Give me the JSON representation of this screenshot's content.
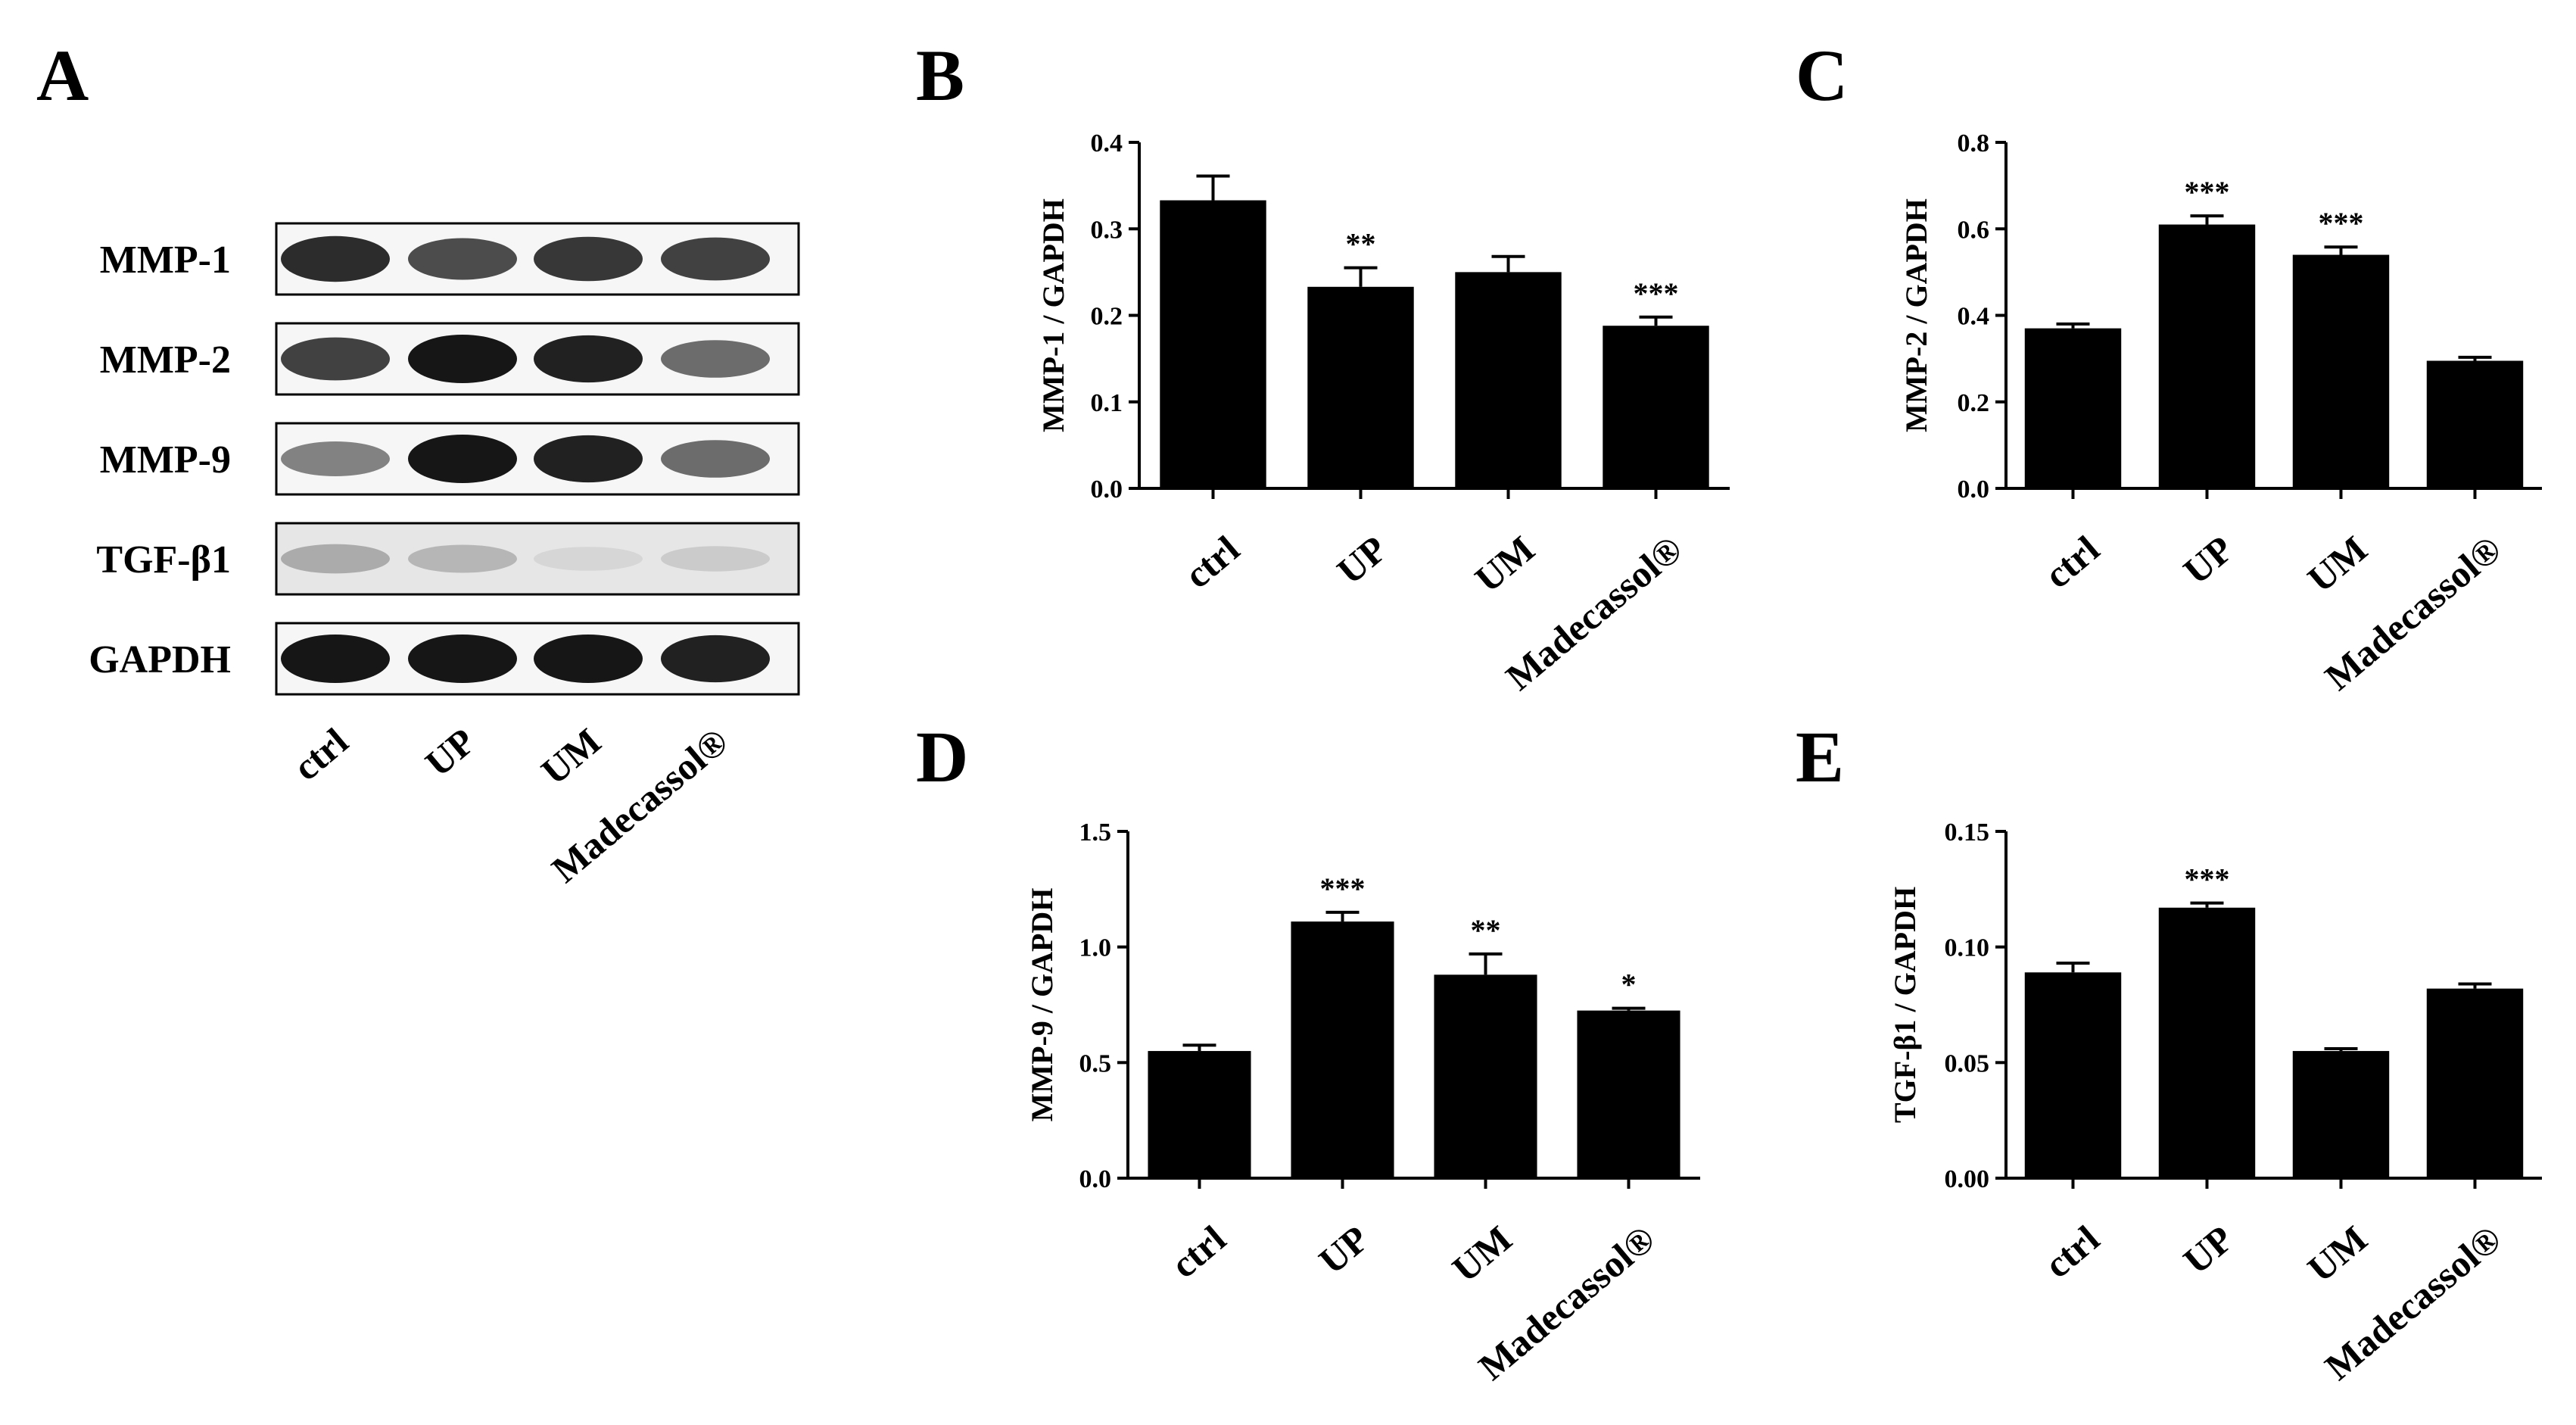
{
  "panel_letters": [
    "A",
    "B",
    "C",
    "D",
    "E"
  ],
  "blot": {
    "rows": [
      "MMP-1",
      "MMP-2",
      "MMP-9",
      "TGF-β1",
      "GAPDH"
    ],
    "lanes": [
      "ctrl",
      "UP",
      "UM",
      "Madecassol®"
    ],
    "band_intensity": [
      [
        0.9,
        0.75,
        0.85,
        0.8
      ],
      [
        0.8,
        1.0,
        0.95,
        0.6
      ],
      [
        0.5,
        1.0,
        0.95,
        0.6
      ],
      [
        0.3,
        0.25,
        0.1,
        0.15
      ],
      [
        1.0,
        1.0,
        1.0,
        0.95
      ]
    ]
  },
  "chart_data": [
    {
      "panel": "B",
      "type": "bar",
      "categories": [
        "ctrl",
        "UP",
        "UM",
        "Madecassol®"
      ],
      "values": [
        0.333,
        0.233,
        0.25,
        0.188
      ],
      "errors": [
        0.028,
        0.022,
        0.018,
        0.01
      ],
      "significance": [
        "",
        "**",
        "",
        "***"
      ],
      "ylabel": "MMP-1 / GAPDH",
      "ylim": [
        0,
        0.4
      ],
      "yticks": [
        "0.0",
        "0.1",
        "0.2",
        "0.3",
        "0.4"
      ]
    },
    {
      "panel": "C",
      "type": "bar",
      "categories": [
        "ctrl",
        "UP",
        "UM",
        "Madecassol®"
      ],
      "values": [
        0.37,
        0.61,
        0.54,
        0.295
      ],
      "errors": [
        0.01,
        0.02,
        0.018,
        0.008
      ],
      "significance": [
        "",
        "***",
        "***",
        ""
      ],
      "ylabel": "MMP-2 / GAPDH",
      "ylim": [
        0,
        0.8
      ],
      "yticks": [
        "0.0",
        "0.2",
        "0.4",
        "0.6",
        "0.8"
      ]
    },
    {
      "panel": "D",
      "type": "bar",
      "categories": [
        "ctrl",
        "UP",
        "UM",
        "Madecassol®"
      ],
      "values": [
        0.55,
        1.11,
        0.88,
        0.725
      ],
      "errors": [
        0.025,
        0.04,
        0.09,
        0.01
      ],
      "significance": [
        "",
        "***",
        "**",
        "*"
      ],
      "ylabel": "MMP-9 / GAPDH",
      "ylim": [
        0,
        1.5
      ],
      "yticks": [
        "0.0",
        "0.5",
        "1.0",
        "1.5"
      ]
    },
    {
      "panel": "E",
      "type": "bar",
      "categories": [
        "ctrl",
        "UP",
        "UM",
        "Madecassol®"
      ],
      "values": [
        0.089,
        0.117,
        0.055,
        0.082
      ],
      "errors": [
        0.004,
        0.002,
        0.001,
        0.002
      ],
      "significance": [
        "",
        "***",
        "",
        ""
      ],
      "ylabel": "TGF-β1 / GAPDH",
      "ylim": [
        0,
        0.15
      ],
      "yticks": [
        "0.00",
        "0.05",
        "0.10",
        "0.15"
      ]
    }
  ]
}
